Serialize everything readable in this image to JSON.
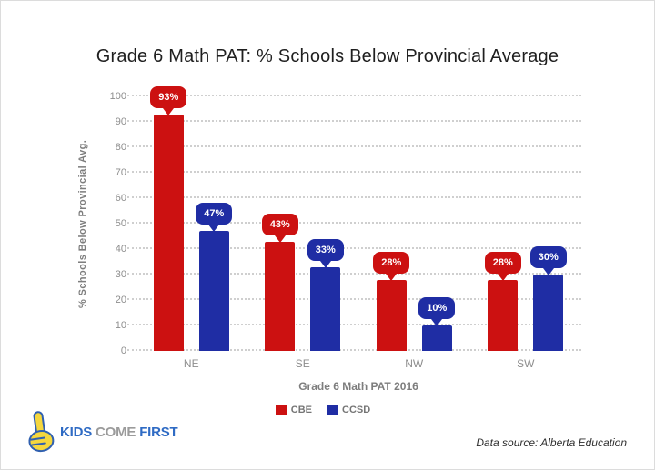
{
  "slide": {
    "data_source": "Data source: Alberta Education",
    "logo": {
      "icon": "pointing-hand-icon",
      "word1": "KIDS",
      "word2": "COME",
      "word3": "FIRST"
    }
  },
  "chart_data": {
    "type": "bar",
    "title": "Grade 6 Math PAT: % Schools Below Provincial Average",
    "xlabel": "Grade 6 Math PAT 2016",
    "ylabel": "% Schools Below Provincial Avg.",
    "categories": [
      "NE",
      "SE",
      "NW",
      "SW"
    ],
    "series": [
      {
        "name": "CBE",
        "color": "#cc1111",
        "values": [
          93,
          43,
          28,
          28
        ],
        "labels": [
          "93%",
          "43%",
          "28%",
          "28%"
        ]
      },
      {
        "name": "CCSD",
        "color": "#1f2da4",
        "values": [
          47,
          33,
          10,
          30
        ],
        "labels": [
          "47%",
          "33%",
          "10%",
          "30%"
        ]
      }
    ],
    "ylim": [
      0,
      100
    ],
    "yticks": [
      0,
      10,
      20,
      30,
      40,
      50,
      60,
      70,
      80,
      90,
      100
    ],
    "grid": "horizontal-dotted",
    "legend_position": "bottom",
    "data_label_style": "callout-bubble"
  },
  "colors": {
    "cbe_red": "#cc1111",
    "ccsd_blue": "#1f2da4",
    "grid_line": "#cfcfcf",
    "axis_text": "#8e8e8e",
    "axis_title_text": "#7d7d7d",
    "title_text": "#1f1f1f",
    "logo_blue": "#2f6bc4",
    "logo_gray": "#9b9b9b",
    "logo_yellow": "#f5d73e"
  }
}
